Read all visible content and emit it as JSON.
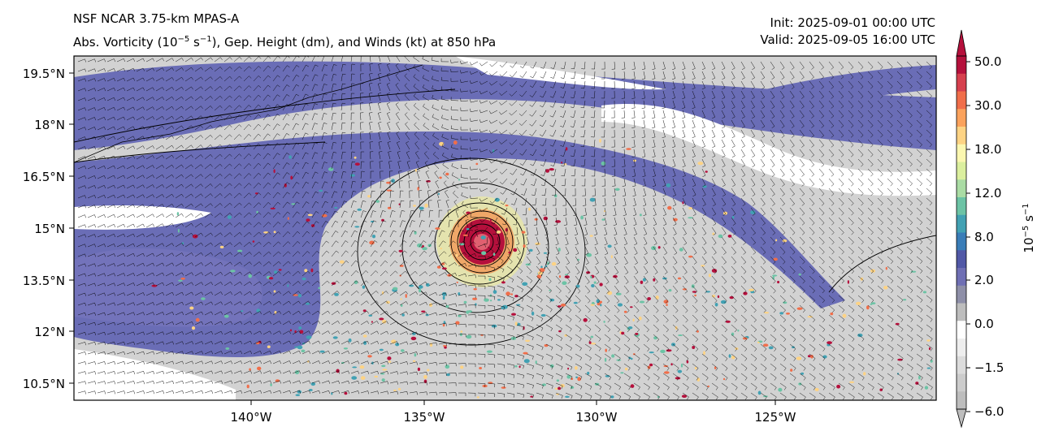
{
  "header": {
    "model": "NSF NCAR 3.75-km MPAS-A",
    "init": "Init: 2025-09-01 00:00 UTC",
    "valid": "Valid: 2025-09-05 16:00 UTC"
  },
  "subtitle": {
    "prefix": "Abs. Vorticity (10",
    "exp1": "−5",
    "mid": " s",
    "exp2": "−1",
    "suffix": "), Gep. Height (dm), and Winds (kt) at 850 hPa"
  },
  "axes": {
    "x_ticks": [
      "140°W",
      "135°W",
      "130°W",
      "125°W"
    ],
    "y_ticks": [
      "19.5°N",
      "18°N",
      "16.5°N",
      "15°N",
      "13.5°N",
      "12°N",
      "10.5°N"
    ]
  },
  "colorbar": {
    "label_base": "10",
    "label_exp1": "−5",
    "label_unit": " s",
    "label_exp2": "−1",
    "tick_labels": [
      "50.0",
      "30.0",
      "18.0",
      "12.0",
      "8.0",
      "2.0",
      "0.0",
      "−1.5",
      "−6.0"
    ],
    "colors": [
      "#b5103c",
      "#d6404e",
      "#f06e4a",
      "#fba25c",
      "#fdd384",
      "#fbf7b0",
      "#dbef9e",
      "#aadca4",
      "#6cc3a5",
      "#42a1b3",
      "#3a7db8",
      "#5158a6",
      "#6f6fb4",
      "#8e8fa8",
      "#bdbdbd",
      "#ffffff",
      "#eeeeee",
      "#dcdcdc",
      "#cccccc",
      "#bdbdbd"
    ]
  },
  "colors": {
    "vort_blue": "#6a6db6",
    "vort_grey": "#cfcfcf",
    "vort_red": "#b5103c",
    "background": "#ffffff"
  }
}
